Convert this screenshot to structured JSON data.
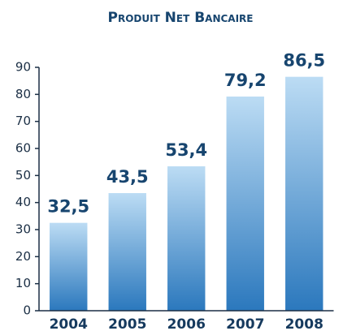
{
  "chart_data": {
    "type": "bar",
    "title": "Produit Net Bancaire",
    "categories": [
      "2004",
      "2005",
      "2006",
      "2007",
      "2008"
    ],
    "values": [
      32.5,
      43.5,
      53.4,
      79.2,
      86.5
    ],
    "value_labels": [
      "32,5",
      "43,5",
      "53,4",
      "79,2",
      "86,5"
    ],
    "color": "#2b78bd",
    "ylim": [
      0,
      90
    ],
    "yticks": [
      0,
      10,
      20,
      30,
      40,
      50,
      60,
      70,
      80,
      90
    ],
    "grid": false
  }
}
